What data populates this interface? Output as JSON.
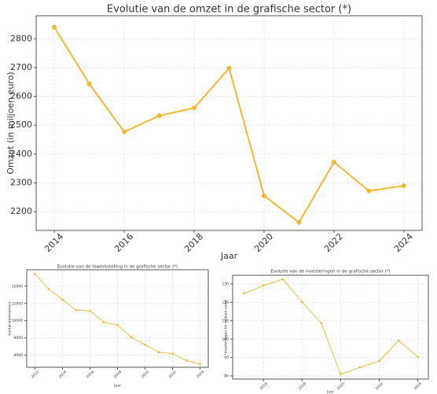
{
  "chart_data": [
    {
      "type": "line",
      "title": "Evolutie van de omzet in de grafische sector (*)",
      "x_label": "Jaar",
      "y_label": "Omzet (in miljoen euro)",
      "x": [
        2014,
        2015,
        2016,
        2017,
        2018,
        2019,
        2020,
        2021,
        2022,
        2023,
        2024
      ],
      "series": [
        {
          "name": "Omzet",
          "color": "#f4b731",
          "values": [
            2840,
            2643,
            2477,
            2533,
            2560,
            2698,
            2255,
            2163,
            2372,
            2272,
            2290
          ]
        }
      ],
      "xlim": [
        2013.48,
        2024.52
      ],
      "xticks": [
        2014,
        2016,
        2018,
        2020,
        2022,
        2024
      ],
      "ylim": [
        2135,
        2880
      ],
      "yticks": [
        2200,
        2300,
        2400,
        2500,
        2600,
        2700,
        2800
      ],
      "grid": true
    },
    {
      "type": "line",
      "title": "Evolutie van de tewerkstelling in de grafische sector (*)",
      "x_label": "Jaar",
      "y_label": "Aantal werknemers",
      "x": [
        2012,
        2013,
        2014,
        2015,
        2016,
        2017,
        2018,
        2019,
        2020,
        2021,
        2022,
        2023,
        2024
      ],
      "series": [
        {
          "name": "Aantal werknemers",
          "color": "#f4b731",
          "values": [
            12700,
            11830,
            11220,
            10610,
            10570,
            9910,
            9740,
            9040,
            8610,
            8170,
            8090,
            7700,
            7480
          ]
        }
      ],
      "xlim": [
        2011.4,
        2024.6
      ],
      "xticks": [
        2012,
        2014,
        2016,
        2018,
        2020,
        2022,
        2024
      ],
      "ylim": [
        7300,
        12950
      ],
      "yticks": [
        8000,
        9000,
        10000,
        11000,
        12000
      ],
      "grid": true
    },
    {
      "type": "line",
      "title": "Evolutie van de investeringen in de grafische sector (*)",
      "x_label": "Jaar",
      "y_label": "Investeringen (in miljoen euro)",
      "x": [
        2015,
        2016,
        2017,
        2018,
        2019,
        2020,
        2021,
        2022,
        2023,
        2024
      ],
      "series": [
        {
          "name": "Investeringen",
          "color": "#f4b731",
          "values": [
            124.9,
            129.1,
            132.6,
            120.2,
            108.6,
            80.9,
            84.7,
            88.1,
            99.2,
            90.3
          ]
        }
      ],
      "xlim": [
        2014.4,
        2024.55
      ],
      "xticks": [
        2016,
        2018,
        2020,
        2022,
        2024
      ],
      "ylim": [
        78.3,
        134.7
      ],
      "yticks": [
        80,
        90,
        100,
        110,
        120,
        130
      ],
      "grid": true
    }
  ]
}
